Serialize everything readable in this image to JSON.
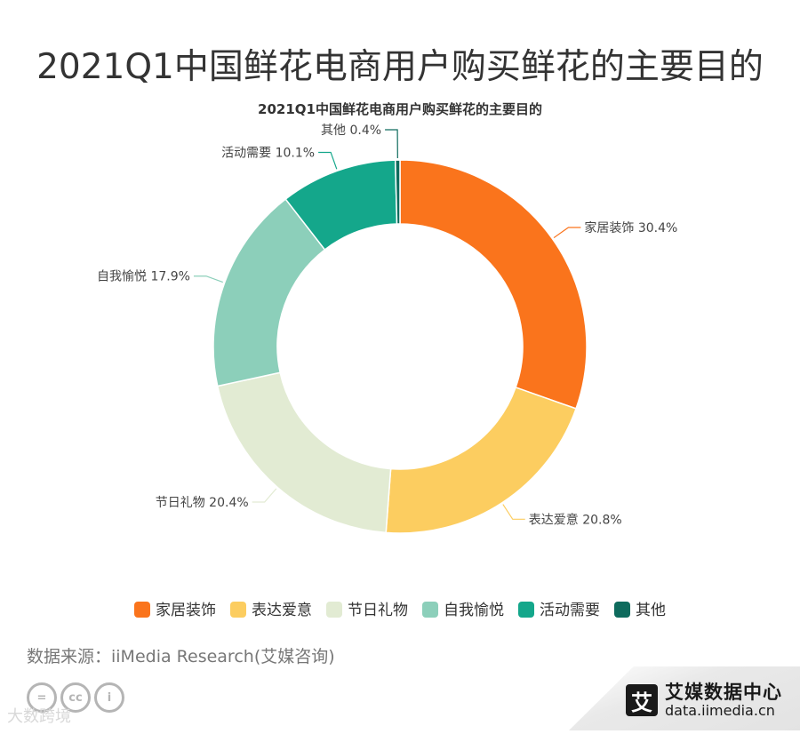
{
  "page_title": "2021Q1中国鲜花电商用户购买鲜花的主要目的",
  "source_text": "数据来源：iiMedia Research(艾媒咨询)",
  "license_icons": [
    "=",
    "cc",
    "i"
  ],
  "watermark_text": "大数跨境",
  "brand": {
    "logo_char": "艾",
    "name": "艾媒数据中心",
    "url": "data.iimedia.cn"
  },
  "chart_data": {
    "type": "pie",
    "donut": true,
    "title": "2021Q1中国鲜花电商用户购买鲜花的主要目的",
    "unit": "%",
    "legend_position": "bottom",
    "slices": [
      {
        "name": "家居装饰",
        "value": 30.4,
        "color": "#fa741c"
      },
      {
        "name": "表达爱意",
        "value": 20.8,
        "color": "#fccd60"
      },
      {
        "name": "节日礼物",
        "value": 20.4,
        "color": "#e2ebd3"
      },
      {
        "name": "自我愉悦",
        "value": 17.9,
        "color": "#8ccfba"
      },
      {
        "name": "活动需要",
        "value": 10.1,
        "color": "#14a78b"
      },
      {
        "name": "其他",
        "value": 0.4,
        "color": "#0e6b5d"
      }
    ]
  }
}
